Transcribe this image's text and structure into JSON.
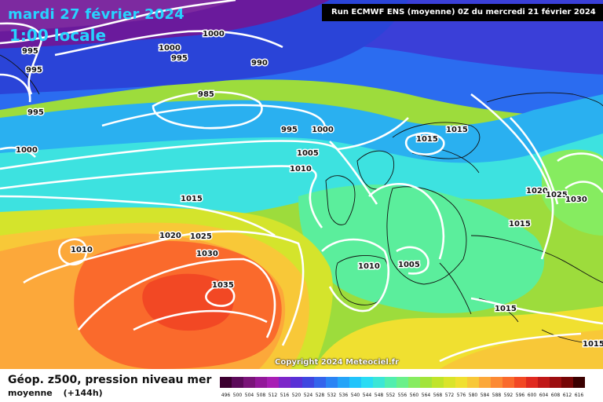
{
  "header": {
    "date": "mardi 27 février 2024",
    "time": "1:00 locale",
    "run": "Run ECMWF ENS (moyenne) 0Z du mercredi 21 février 2024"
  },
  "footer": {
    "product": "Géop. z500, pression niveau mer",
    "variant": "moyenne",
    "lead": "(+144h)",
    "copyright": "Copyright 2024 Meteociel.fr"
  },
  "legend": {
    "ticks": [
      "496",
      "500",
      "504",
      "508",
      "512",
      "516",
      "520",
      "524",
      "528",
      "532",
      "536",
      "540",
      "544",
      "548",
      "552",
      "556",
      "560",
      "564",
      "568",
      "572",
      "576",
      "580",
      "584",
      "588",
      "592",
      "596",
      "600",
      "604",
      "608",
      "612",
      "616"
    ],
    "colors": [
      "#3c0030",
      "#5c0a5a",
      "#7a1479",
      "#93189a",
      "#a81eb4",
      "#7d26c9",
      "#5a30d6",
      "#3f46e0",
      "#3464ec",
      "#2b84f4",
      "#25a4f8",
      "#22c4fb",
      "#2adcf4",
      "#3ce6d6",
      "#52eeae",
      "#6af08a",
      "#86ec60",
      "#a2e43a",
      "#c0e42a",
      "#dae42a",
      "#f0e030",
      "#f8c838",
      "#fca83a",
      "#fc8a34",
      "#fa6a2c",
      "#f24824",
      "#e02a20",
      "#c01818",
      "#9c0e10",
      "#760606",
      "#3a0000"
    ]
  },
  "isobars": {
    "labels": [
      "995",
      "995",
      "995",
      "1000",
      "1000",
      "1000",
      "995",
      "990",
      "985",
      "995",
      "1000",
      "1005",
      "1010",
      "1015",
      "1015",
      "1015",
      "1020",
      "1025",
      "1030",
      "1035",
      "1010",
      "1010",
      "1005",
      "1015",
      "1015",
      "1020",
      "1025",
      "1030",
      "1015"
    ]
  }
}
